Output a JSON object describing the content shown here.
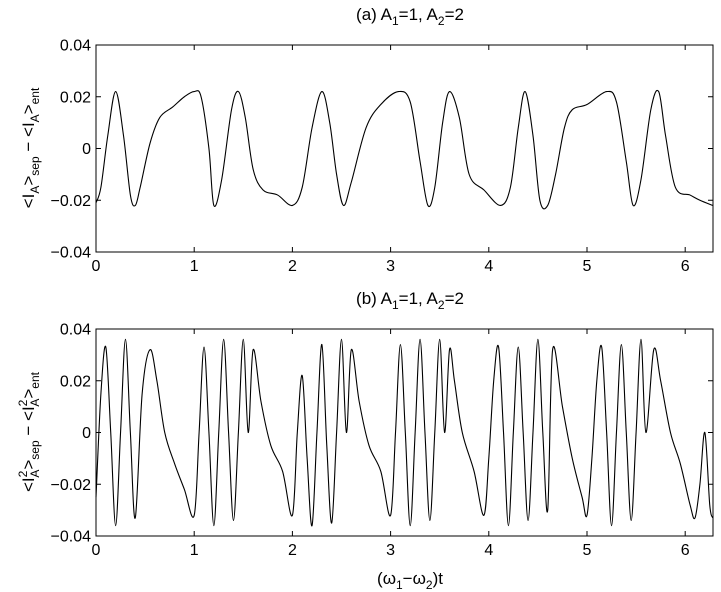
{
  "chart_data": [
    {
      "type": "line",
      "title": {
        "pre": "(a) A",
        "sub1": "1",
        "mid": "=1,   A",
        "sub2": "2",
        "post": "=2"
      },
      "ylabel": {
        "p1": "<I",
        "s1": "A",
        "p2": ">",
        "s2": "sep",
        "p3": " − <I",
        "s3": "A",
        "p4": ">",
        "s4": "ent"
      },
      "xlabel": null,
      "xlim": [
        0,
        6.2832
      ],
      "ylim": [
        -0.04,
        0.04
      ],
      "xticks": [
        0,
        1,
        2,
        3,
        4,
        5,
        6
      ],
      "xtick_labels": [
        "0",
        "1",
        "2",
        "3",
        "4",
        "5",
        "6"
      ],
      "yticks": [
        -0.04,
        -0.02,
        0,
        0.02,
        0.04
      ],
      "ytick_labels": [
        "−0.04",
        "−0.02",
        "0",
        "0.02",
        "0.04"
      ],
      "grid": false,
      "series": [
        {
          "x": [
            0,
            0.05,
            0.12,
            0.2,
            0.28,
            0.35,
            0.4,
            0.45,
            0.55,
            0.65,
            0.78,
            0.9,
            1.0,
            1.07,
            1.15,
            1.2,
            1.28,
            1.38,
            1.45,
            1.52,
            1.6,
            1.7,
            1.85,
            2.0,
            2.1,
            2.2,
            2.3,
            2.38,
            2.45,
            2.52,
            2.6,
            2.75,
            2.9,
            3.08,
            3.2,
            3.3,
            3.38,
            3.45,
            3.53,
            3.6,
            3.7,
            3.8,
            3.95,
            4.12,
            4.22,
            4.3,
            4.37,
            4.45,
            4.52,
            4.6,
            4.68,
            4.77,
            4.85,
            5.0,
            5.2,
            5.3,
            5.4,
            5.47,
            5.55,
            5.65,
            5.73,
            5.8,
            5.9,
            6.05,
            6.15,
            6.28
          ],
          "y": [
            -0.021,
            -0.015,
            0.005,
            0.022,
            0.005,
            -0.018,
            -0.022,
            -0.015,
            0.002,
            0.012,
            0.016,
            0.02,
            0.022,
            0.02,
            0.0,
            -0.022,
            -0.012,
            0.015,
            0.022,
            0.012,
            -0.008,
            -0.016,
            -0.018,
            -0.022,
            -0.015,
            0.008,
            0.022,
            0.01,
            -0.01,
            -0.022,
            -0.013,
            0.008,
            0.017,
            0.022,
            0.018,
            -0.005,
            -0.022,
            -0.015,
            0.01,
            0.022,
            0.012,
            -0.01,
            -0.016,
            -0.022,
            -0.015,
            0.008,
            0.022,
            0.005,
            -0.02,
            -0.022,
            -0.01,
            0.008,
            0.015,
            0.017,
            0.022,
            0.018,
            -0.005,
            -0.022,
            -0.012,
            0.015,
            0.022,
            0.005,
            -0.015,
            -0.018,
            -0.02,
            -0.022
          ]
        }
      ]
    },
    {
      "type": "line",
      "title": {
        "pre": "(b)  A",
        "sub1": "1",
        "mid": "=1,   A",
        "sub2": "2",
        "post": "=2"
      },
      "ylabel": {
        "p1": "<I",
        "sp1": "2",
        "s1": "A",
        "p2": ">",
        "s2": "sep",
        "p3": " − <I",
        "sp3": "2",
        "s3": "A",
        "p4": ">",
        "s4": "ent"
      },
      "xlabel": {
        "p1": "(ω",
        "s1": "1",
        "p2": "−ω",
        "s2": "2",
        "p3": ")t"
      },
      "xlim": [
        0,
        6.2832
      ],
      "ylim": [
        -0.04,
        0.04
      ],
      "xticks": [
        0,
        1,
        2,
        3,
        4,
        5,
        6
      ],
      "xtick_labels": [
        "0",
        "1",
        "2",
        "3",
        "4",
        "5",
        "6"
      ],
      "yticks": [
        -0.04,
        -0.02,
        0,
        0.02,
        0.04
      ],
      "ytick_labels": [
        "−0.04",
        "−0.02",
        "0",
        "0.02",
        "0.04"
      ],
      "grid": false,
      "series": [
        {
          "x": [
            0,
            0.05,
            0.1,
            0.15,
            0.2,
            0.25,
            0.3,
            0.35,
            0.4,
            0.47,
            0.55,
            0.62,
            0.7,
            0.8,
            0.9,
            1.0,
            1.05,
            1.1,
            1.15,
            1.2,
            1.25,
            1.3,
            1.35,
            1.4,
            1.45,
            1.5,
            1.55,
            1.6,
            1.68,
            1.78,
            1.9,
            2.0,
            2.05,
            2.1,
            2.15,
            2.2,
            2.25,
            2.3,
            2.35,
            2.4,
            2.45,
            2.5,
            2.55,
            2.6,
            2.68,
            2.78,
            2.9,
            3.0,
            3.05,
            3.1,
            3.15,
            3.2,
            3.25,
            3.3,
            3.35,
            3.4,
            3.45,
            3.5,
            3.55,
            3.6,
            3.65,
            3.73,
            3.85,
            3.95,
            4.0,
            4.05,
            4.1,
            4.15,
            4.2,
            4.25,
            4.3,
            4.35,
            4.4,
            4.45,
            4.5,
            4.55,
            4.6,
            4.65,
            4.75,
            4.85,
            4.95,
            5.0,
            5.05,
            5.1,
            5.15,
            5.2,
            5.25,
            5.3,
            5.35,
            5.4,
            5.45,
            5.5,
            5.55,
            5.6,
            5.68,
            5.75,
            5.85,
            5.95,
            6.05,
            6.1,
            6.15,
            6.2,
            6.25,
            6.28
          ],
          "y": [
            -0.025,
            0.015,
            0.033,
            0.0,
            -0.036,
            0.0,
            0.036,
            0.0,
            -0.033,
            0.015,
            0.032,
            0.02,
            0.0,
            -0.012,
            -0.022,
            -0.032,
            0.0,
            0.033,
            0.0,
            -0.036,
            0.0,
            0.036,
            0.0,
            -0.034,
            0.0,
            0.036,
            0.0,
            0.032,
            0.012,
            -0.005,
            -0.015,
            -0.032,
            0.0,
            0.022,
            -0.01,
            -0.036,
            0.0,
            0.034,
            -0.005,
            -0.035,
            0.0,
            0.036,
            0.0,
            0.032,
            0.012,
            -0.005,
            -0.015,
            -0.032,
            0.0,
            0.034,
            0.0,
            -0.036,
            0.0,
            0.036,
            0.0,
            -0.034,
            0.0,
            0.036,
            0.0,
            0.032,
            0.02,
            0.0,
            -0.015,
            -0.032,
            -0.01,
            0.02,
            0.033,
            0.0,
            -0.036,
            0.0,
            0.033,
            0.0,
            -0.034,
            0.0,
            0.036,
            0.0,
            -0.03,
            0.032,
            0.01,
            -0.01,
            -0.025,
            -0.032,
            -0.01,
            0.02,
            0.033,
            0.0,
            -0.036,
            0.0,
            0.034,
            0.0,
            -0.034,
            0.0,
            0.036,
            0.0,
            0.032,
            0.02,
            0.0,
            -0.012,
            -0.028,
            -0.033,
            -0.02,
            0.0,
            -0.028,
            -0.033
          ]
        }
      ]
    }
  ]
}
